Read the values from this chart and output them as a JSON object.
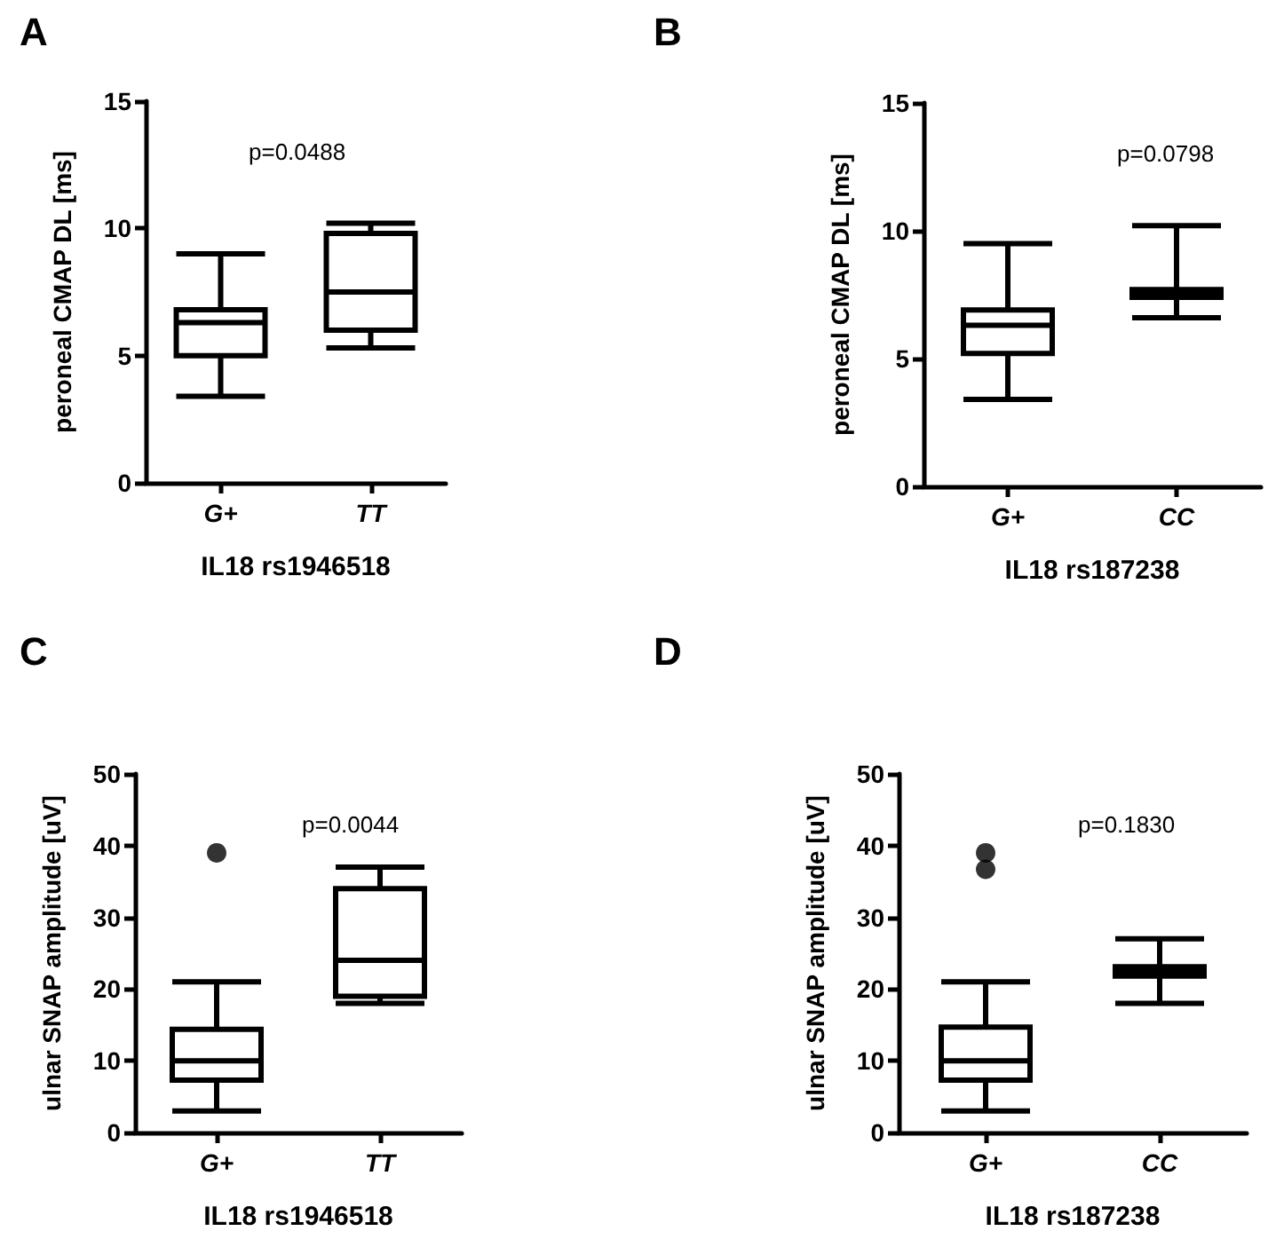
{
  "chart_data": [
    {
      "type": "box",
      "title": "A",
      "ylabel": "peroneal CMAP DL [ms]",
      "xlabel": "IL18 rs1946518",
      "categories": [
        "G+",
        "TT"
      ],
      "color": "#000000",
      "ylim": [
        0,
        15
      ],
      "yticks": [
        0,
        5,
        10,
        15
      ],
      "annotations": [
        "p=0.0488"
      ],
      "boxes": [
        {
          "low": 3.4,
          "q1": 5.0,
          "median": 6.3,
          "q3": 6.8,
          "high": 9.0
        },
        {
          "low": 5.3,
          "q1": 6.0,
          "median": 7.5,
          "q3": 9.8,
          "high": 10.2
        }
      ]
    },
    {
      "type": "box",
      "title": "B",
      "ylabel": "peroneal CMAP DL [ms]",
      "xlabel": "IL18 rs187238",
      "categories": [
        "G+",
        "CC"
      ],
      "color": "#000000",
      "ylim": [
        0,
        15
      ],
      "yticks": [
        0,
        5,
        10,
        15
      ],
      "annotations": [
        "p=0.0798"
      ],
      "boxes": [
        {
          "low": 3.4,
          "q1": 5.2,
          "median": 6.3,
          "q3": 6.9,
          "high": 9.5
        },
        {
          "low": 6.6,
          "q1": 7.4,
          "median": 7.6,
          "q3": 7.7,
          "high": 10.2
        }
      ]
    },
    {
      "type": "box",
      "title": "C",
      "ylabel": "ulnar SNAP amplitude [uV]",
      "xlabel": "IL18 rs1946518",
      "categories": [
        "G+",
        "TT"
      ],
      "color": "#000000",
      "ylim": [
        0,
        50
      ],
      "yticks": [
        0,
        10,
        20,
        30,
        40,
        50
      ],
      "annotations": [
        "p=0.0044"
      ],
      "boxes": [
        {
          "low": 3,
          "q1": 7.3,
          "median": 10,
          "q3": 14.4,
          "high": 21,
          "outliers": [
            39
          ]
        },
        {
          "low": 18,
          "q1": 19,
          "median": 24,
          "q3": 34,
          "high": 37
        }
      ]
    },
    {
      "type": "box",
      "title": "D",
      "ylabel": "ulnar SNAP amplitude [uV]",
      "xlabel": "IL18 rs187238",
      "categories": [
        "G+",
        "CC"
      ],
      "color": "#000000",
      "ylim": [
        0,
        50
      ],
      "yticks": [
        0,
        10,
        20,
        30,
        40,
        50
      ],
      "annotations": [
        "p=0.1830"
      ],
      "boxes": [
        {
          "low": 3,
          "q1": 7.3,
          "median": 10,
          "q3": 14.7,
          "high": 21,
          "outliers": [
            39,
            36.7
          ]
        },
        {
          "low": 18,
          "q1": 21.8,
          "median": 22.5,
          "q3": 23.1,
          "high": 27
        }
      ]
    }
  ]
}
